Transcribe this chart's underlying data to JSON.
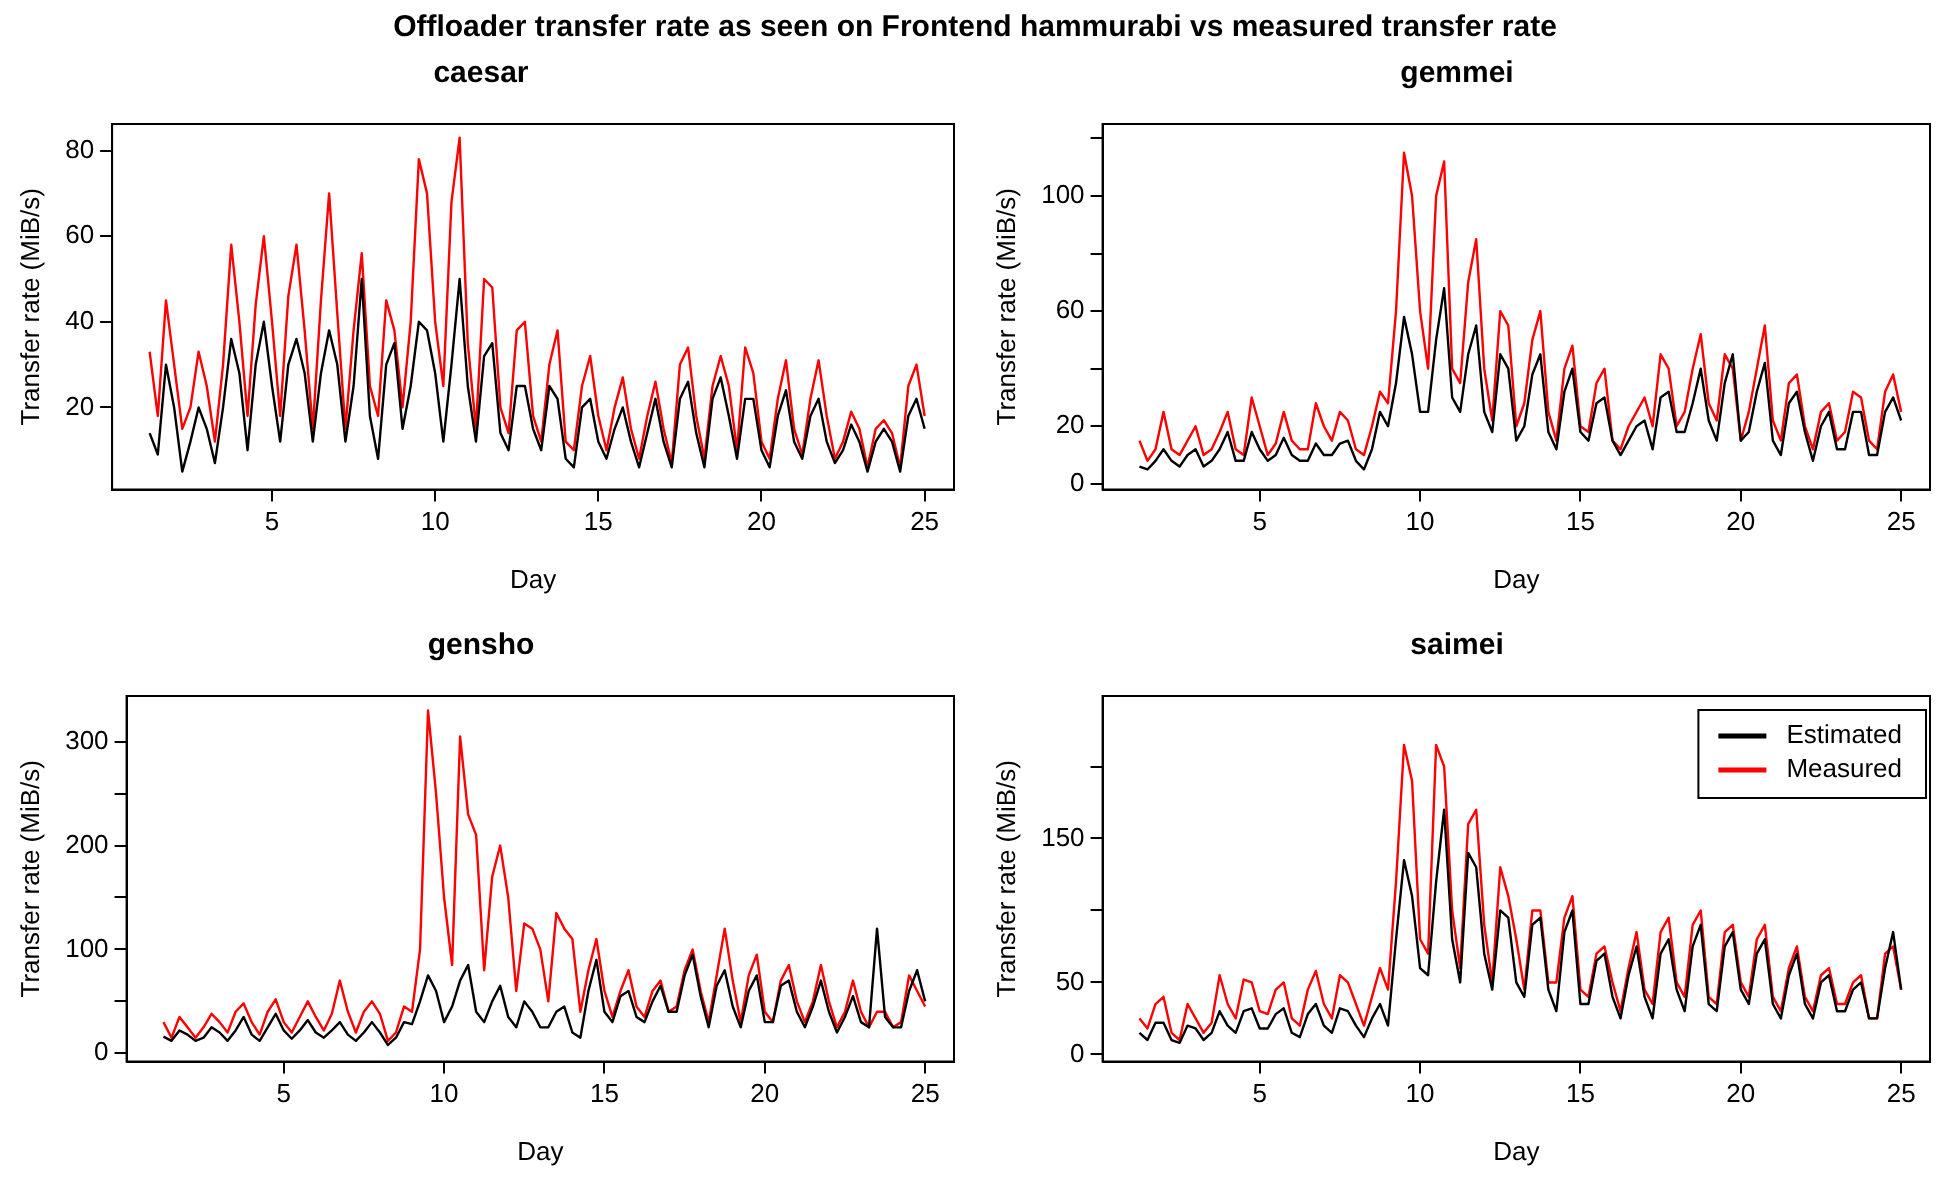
{
  "chart_data": [
    {
      "type": "line",
      "title": "caesar",
      "xlabel": "Day",
      "ylabel": "Transfer rate (MiB/s)",
      "annotations": [
        "Offloader transfer rate as seen on Frontend hammurabi vs measured transfer rate"
      ],
      "x": [
        1.25,
        1.5,
        1.75,
        2,
        2.25,
        2.5,
        2.75,
        3,
        3.25,
        3.5,
        3.75,
        4,
        4.25,
        4.5,
        4.75,
        5,
        5.25,
        5.5,
        5.75,
        6,
        6.25,
        6.5,
        6.75,
        7,
        7.25,
        7.5,
        7.75,
        8,
        8.25,
        8.5,
        8.75,
        9,
        9.25,
        9.5,
        9.75,
        10,
        10.25,
        10.5,
        10.75,
        11,
        11.25,
        11.5,
        11.75,
        12,
        12.25,
        12.5,
        12.75,
        13,
        13.25,
        13.5,
        13.75,
        14,
        14.25,
        14.5,
        14.75,
        15,
        15.25,
        15.5,
        15.75,
        16,
        16.25,
        16.5,
        16.75,
        17,
        17.25,
        17.5,
        17.75,
        18,
        18.25,
        18.5,
        18.75,
        19,
        19.25,
        19.5,
        19.75,
        20,
        20.25,
        20.5,
        20.75,
        21,
        21.25,
        21.5,
        21.75,
        22,
        22.25,
        22.5,
        22.75,
        23,
        23.25,
        23.5,
        23.75,
        24,
        24.25,
        24.5,
        24.75,
        25
      ],
      "xlim": [
        0.1,
        25.9
      ],
      "xticks": [
        5,
        10,
        15,
        20,
        25
      ],
      "ylim": [
        0.8,
        86.2
      ],
      "yticks": [
        20,
        40,
        60,
        80
      ],
      "series": [
        {
          "color": "#000000",
          "values": [
            14,
            9,
            30,
            20,
            5,
            12,
            20,
            15,
            7,
            20,
            36,
            28,
            10,
            30,
            40,
            25,
            12,
            30,
            36,
            28,
            12,
            28,
            38,
            30,
            12,
            25,
            50,
            18,
            8,
            30,
            35,
            15,
            25,
            40,
            38,
            28,
            12,
            30,
            50,
            25,
            12,
            32,
            35,
            14,
            10,
            25,
            25,
            15,
            10,
            25,
            22,
            8,
            6,
            20,
            22,
            12,
            8,
            15,
            20,
            12,
            6,
            14,
            22,
            12,
            6,
            22,
            26,
            14,
            6,
            22,
            27,
            18,
            8,
            22,
            22,
            10,
            6,
            18,
            24,
            12,
            8,
            18,
            22,
            12,
            7,
            10,
            16,
            12,
            5,
            12,
            15,
            12,
            5,
            18,
            22,
            15
          ]
        },
        {
          "color": "#ff0000",
          "values": [
            33,
            18,
            45,
            30,
            15,
            20,
            33,
            25,
            12,
            30,
            58,
            40,
            18,
            44,
            60,
            40,
            18,
            46,
            58,
            38,
            15,
            45,
            70,
            42,
            15,
            38,
            56,
            25,
            18,
            45,
            38,
            20,
            40,
            78,
            70,
            40,
            25,
            68,
            83,
            35,
            15,
            50,
            48,
            20,
            14,
            38,
            40,
            18,
            12,
            30,
            38,
            12,
            10,
            25,
            32,
            18,
            10,
            20,
            27,
            15,
            8,
            18,
            26,
            15,
            7,
            30,
            34,
            18,
            8,
            25,
            32,
            25,
            10,
            34,
            28,
            12,
            8,
            22,
            31,
            15,
            9,
            22,
            31,
            18,
            8,
            12,
            19,
            15,
            6,
            15,
            17,
            14,
            6,
            25,
            30,
            18
          ]
        }
      ]
    },
    {
      "type": "line",
      "title": "gemmei",
      "xlabel": "Day",
      "ylabel": "Transfer rate (MiB/s)",
      "x": [
        1.25,
        1.5,
        1.75,
        2,
        2.25,
        2.5,
        2.75,
        3,
        3.25,
        3.5,
        3.75,
        4,
        4.25,
        4.5,
        4.75,
        5,
        5.25,
        5.5,
        5.75,
        6,
        6.25,
        6.5,
        6.75,
        7,
        7.25,
        7.5,
        7.75,
        8,
        8.25,
        8.5,
        8.75,
        9,
        9.25,
        9.5,
        9.75,
        10,
        10.25,
        10.5,
        10.75,
        11,
        11.25,
        11.5,
        11.75,
        12,
        12.25,
        12.5,
        12.75,
        13,
        13.25,
        13.5,
        13.75,
        14,
        14.25,
        14.5,
        14.75,
        15,
        15.25,
        15.5,
        15.75,
        16,
        16.25,
        16.5,
        16.75,
        17,
        17.25,
        17.5,
        17.75,
        18,
        18.25,
        18.5,
        18.75,
        19,
        19.25,
        19.5,
        19.75,
        20,
        20.25,
        20.5,
        20.75,
        21,
        21.25,
        21.5,
        21.75,
        22,
        22.25,
        22.5,
        22.75,
        23,
        23.25,
        23.5,
        23.75,
        24,
        24.25,
        24.5,
        24.75,
        25
      ],
      "xlim": [
        0.1,
        25.9
      ],
      "xticks": [
        5,
        10,
        15,
        20,
        25
      ],
      "ylim": [
        -2,
        125
      ],
      "yticks": [
        0,
        20,
        {
          "value": 40,
          "label": null
        },
        60,
        {
          "value": 80,
          "label": null
        },
        100,
        {
          "value": 120,
          "label": null
        }
      ],
      "series": [
        {
          "color": "#000000",
          "values": [
            6,
            5,
            8,
            12,
            8,
            6,
            10,
            12,
            6,
            8,
            12,
            18,
            8,
            8,
            18,
            12,
            8,
            10,
            16,
            10,
            8,
            8,
            14,
            10,
            10,
            14,
            15,
            8,
            5,
            12,
            25,
            20,
            35,
            58,
            45,
            25,
            25,
            50,
            68,
            30,
            25,
            45,
            55,
            25,
            18,
            45,
            40,
            15,
            20,
            38,
            45,
            18,
            12,
            32,
            40,
            18,
            15,
            28,
            30,
            15,
            10,
            15,
            20,
            22,
            12,
            30,
            32,
            18,
            18,
            28,
            40,
            22,
            15,
            35,
            45,
            15,
            18,
            32,
            42,
            15,
            10,
            28,
            32,
            18,
            8,
            20,
            25,
            12,
            12,
            25,
            25,
            10,
            10,
            25,
            30,
            22
          ]
        },
        {
          "color": "#ff0000",
          "values": [
            15,
            8,
            12,
            25,
            12,
            10,
            15,
            20,
            10,
            12,
            18,
            25,
            12,
            10,
            30,
            20,
            10,
            14,
            25,
            15,
            12,
            12,
            28,
            20,
            15,
            25,
            22,
            12,
            10,
            20,
            32,
            28,
            60,
            115,
            100,
            60,
            40,
            100,
            112,
            40,
            35,
            70,
            85,
            40,
            22,
            60,
            55,
            20,
            28,
            50,
            60,
            25,
            15,
            40,
            48,
            20,
            18,
            35,
            40,
            15,
            12,
            20,
            25,
            30,
            20,
            45,
            40,
            20,
            25,
            40,
            52,
            28,
            22,
            45,
            40,
            15,
            25,
            40,
            55,
            22,
            15,
            35,
            38,
            20,
            12,
            25,
            28,
            15,
            18,
            32,
            30,
            15,
            12,
            32,
            38,
            25
          ]
        }
      ]
    },
    {
      "type": "line",
      "title": "gensho",
      "xlabel": "Day",
      "ylabel": "Transfer rate (MiB/s)",
      "x": [
        1.25,
        1.5,
        1.75,
        2,
        2.25,
        2.5,
        2.75,
        3,
        3.25,
        3.5,
        3.75,
        4,
        4.25,
        4.5,
        4.75,
        5,
        5.25,
        5.5,
        5.75,
        6,
        6.25,
        6.5,
        6.75,
        7,
        7.25,
        7.5,
        7.75,
        8,
        8.25,
        8.5,
        8.75,
        9,
        9.25,
        9.5,
        9.75,
        10,
        10.25,
        10.5,
        10.75,
        11,
        11.25,
        11.5,
        11.75,
        12,
        12.25,
        12.5,
        12.75,
        13,
        13.25,
        13.5,
        13.75,
        14,
        14.25,
        14.5,
        14.75,
        15,
        15.25,
        15.5,
        15.75,
        16,
        16.25,
        16.5,
        16.75,
        17,
        17.25,
        17.5,
        17.75,
        18,
        18.25,
        18.5,
        18.75,
        19,
        19.25,
        19.5,
        19.75,
        20,
        20.25,
        20.5,
        20.75,
        21,
        21.25,
        21.5,
        21.75,
        22,
        22.25,
        22.5,
        22.75,
        23,
        23.25,
        23.5,
        23.75,
        24,
        24.25,
        24.5,
        24.75,
        25
      ],
      "xlim": [
        0.1,
        25.9
      ],
      "xticks": [
        5,
        10,
        15,
        20,
        25
      ],
      "ylim": [
        -8,
        344
      ],
      "yticks": [
        0,
        {
          "value": 50,
          "label": null
        },
        100,
        {
          "value": 150,
          "label": null
        },
        200,
        {
          "value": 250,
          "label": null
        },
        300
      ],
      "series": [
        {
          "color": "#000000",
          "values": [
            16,
            12,
            22,
            18,
            12,
            15,
            25,
            20,
            12,
            22,
            35,
            18,
            12,
            25,
            38,
            22,
            14,
            22,
            32,
            20,
            15,
            22,
            30,
            18,
            12,
            20,
            30,
            20,
            8,
            15,
            30,
            28,
            50,
            75,
            60,
            30,
            45,
            70,
            85,
            40,
            30,
            50,
            65,
            35,
            25,
            50,
            40,
            25,
            25,
            40,
            45,
            20,
            15,
            60,
            90,
            40,
            30,
            55,
            60,
            35,
            30,
            50,
            65,
            40,
            40,
            75,
            95,
            55,
            25,
            65,
            80,
            45,
            25,
            60,
            75,
            30,
            30,
            65,
            70,
            40,
            25,
            45,
            70,
            40,
            20,
            35,
            55,
            30,
            25,
            120,
            35,
            25,
            25,
            60,
            80,
            50
          ]
        },
        {
          "color": "#ff0000",
          "values": [
            30,
            15,
            35,
            25,
            15,
            25,
            38,
            30,
            20,
            40,
            48,
            30,
            18,
            40,
            52,
            30,
            20,
            35,
            50,
            35,
            22,
            38,
            70,
            40,
            20,
            40,
            50,
            38,
            12,
            20,
            45,
            40,
            100,
            330,
            250,
            150,
            85,
            305,
            230,
            210,
            80,
            170,
            200,
            150,
            60,
            125,
            120,
            100,
            50,
            135,
            120,
            110,
            40,
            80,
            110,
            60,
            35,
            60,
            80,
            45,
            35,
            60,
            70,
            40,
            45,
            80,
            100,
            60,
            30,
            75,
            120,
            70,
            30,
            75,
            95,
            40,
            30,
            70,
            85,
            50,
            30,
            50,
            85,
            50,
            25,
            40,
            70,
            40,
            25,
            40,
            40,
            25,
            30,
            75,
            60,
            45
          ]
        }
      ]
    },
    {
      "type": "line",
      "title": "saimei",
      "xlabel": "Day",
      "ylabel": "Transfer rate (MiB/s)",
      "legend": "top right",
      "x": [
        1.25,
        1.5,
        1.75,
        2,
        2.25,
        2.5,
        2.75,
        3,
        3.25,
        3.5,
        3.75,
        4,
        4.25,
        4.5,
        4.75,
        5,
        5.25,
        5.5,
        5.75,
        6,
        6.25,
        6.5,
        6.75,
        7,
        7.25,
        7.5,
        7.75,
        8,
        8.25,
        8.5,
        8.75,
        9,
        9.25,
        9.5,
        9.75,
        10,
        10.25,
        10.5,
        10.75,
        11,
        11.25,
        11.5,
        11.75,
        12,
        12.25,
        12.5,
        12.75,
        13,
        13.25,
        13.5,
        13.75,
        14,
        14.25,
        14.5,
        14.75,
        15,
        15.25,
        15.5,
        15.75,
        16,
        16.25,
        16.5,
        16.75,
        17,
        17.25,
        17.5,
        17.75,
        18,
        18.25,
        18.5,
        18.75,
        19,
        19.25,
        19.5,
        19.75,
        20,
        20.25,
        20.5,
        20.75,
        21,
        21.25,
        21.5,
        21.75,
        22,
        22.25,
        22.5,
        22.75,
        23,
        23.25,
        23.5,
        23.75,
        24,
        24.25,
        24.5,
        24.75,
        25
      ],
      "xlim": [
        0.1,
        25.9
      ],
      "xticks": [
        5,
        10,
        15,
        20,
        25
      ],
      "ylim": [
        -5,
        249
      ],
      "yticks": [
        0,
        50,
        {
          "value": 100,
          "label": null
        },
        150,
        {
          "value": 200,
          "label": null
        }
      ],
      "series": [
        {
          "name": "Estimated",
          "color": "#000000",
          "values": [
            15,
            10,
            22,
            22,
            10,
            8,
            20,
            18,
            10,
            15,
            30,
            20,
            15,
            30,
            32,
            18,
            18,
            28,
            32,
            15,
            12,
            28,
            35,
            20,
            15,
            32,
            30,
            20,
            12,
            25,
            35,
            20,
            80,
            135,
            110,
            60,
            55,
            120,
            170,
            80,
            50,
            140,
            130,
            70,
            45,
            100,
            95,
            50,
            40,
            90,
            95,
            45,
            30,
            85,
            100,
            35,
            35,
            65,
            70,
            40,
            25,
            55,
            75,
            40,
            25,
            70,
            80,
            45,
            30,
            75,
            90,
            35,
            30,
            75,
            85,
            45,
            35,
            70,
            80,
            35,
            25,
            55,
            70,
            35,
            25,
            50,
            55,
            30,
            30,
            45,
            50,
            25,
            25,
            60,
            85,
            45
          ]
        },
        {
          "name": "Measured",
          "color": "#ff0000",
          "values": [
            25,
            18,
            35,
            40,
            15,
            10,
            35,
            25,
            15,
            22,
            55,
            35,
            25,
            52,
            50,
            30,
            28,
            45,
            50,
            25,
            20,
            45,
            58,
            35,
            25,
            55,
            50,
            35,
            20,
            40,
            60,
            45,
            120,
            215,
            190,
            80,
            70,
            215,
            200,
            100,
            60,
            160,
            170,
            90,
            50,
            130,
            110,
            80,
            45,
            100,
            100,
            50,
            50,
            95,
            110,
            45,
            40,
            70,
            75,
            50,
            30,
            60,
            85,
            45,
            35,
            85,
            95,
            50,
            40,
            90,
            100,
            40,
            35,
            85,
            90,
            50,
            40,
            80,
            90,
            40,
            30,
            60,
            75,
            40,
            30,
            55,
            60,
            35,
            35,
            50,
            55,
            25,
            25,
            70,
            75,
            45
          ]
        }
      ]
    }
  ]
}
